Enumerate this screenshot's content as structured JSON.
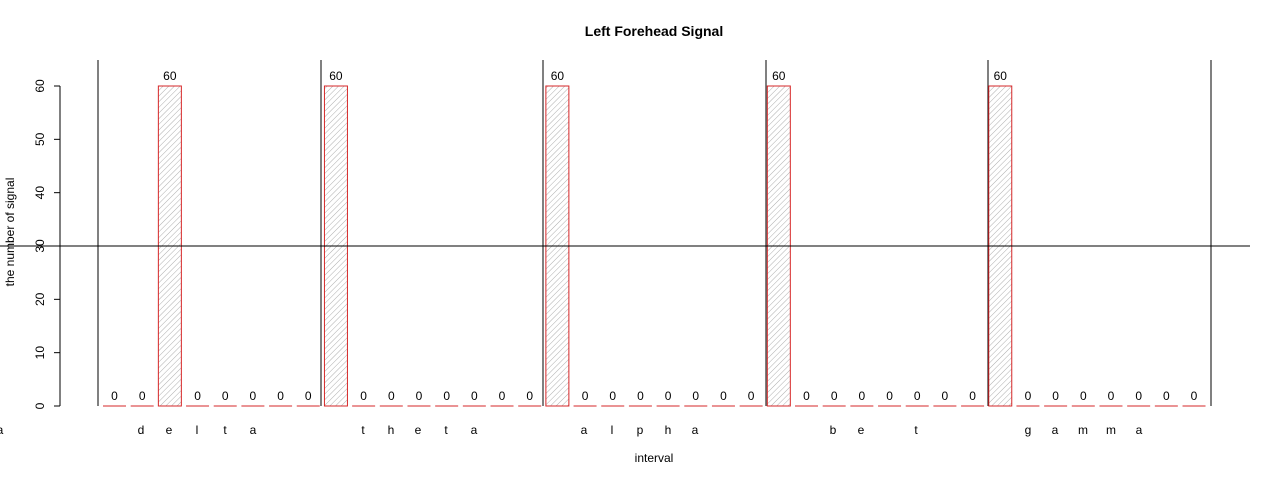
{
  "chart_data": {
    "type": "bar",
    "title": "Left Forehead Signal",
    "xlabel": "interval",
    "ylabel": "the number of signal",
    "ylim": [
      0,
      60
    ],
    "yticks": [
      "0",
      "10",
      "20",
      "30",
      "40",
      "50",
      "60"
    ],
    "threshold_line": 30,
    "bar_border_color": "#d62728",
    "bar_fill": "diagonal-hatch",
    "groups": [
      {
        "label_letters": [
          "d",
          "e",
          "l",
          "t",
          "a"
        ],
        "values": [
          0,
          0,
          60,
          0,
          0,
          0,
          0,
          0
        ]
      },
      {
        "label_letters": [
          "t",
          "h",
          "e",
          "t",
          "a"
        ],
        "values": [
          60,
          0,
          0,
          0,
          0,
          0,
          0,
          0
        ]
      },
      {
        "label_letters": [
          "a",
          "l",
          "p",
          "h",
          "a"
        ],
        "values": [
          60,
          0,
          0,
          0,
          0,
          0,
          0,
          0
        ]
      },
      {
        "label_letters": [
          "b",
          "e",
          "t",
          "a"
        ],
        "values": [
          60,
          0,
          0,
          0,
          0,
          0,
          0,
          0
        ]
      },
      {
        "label_letters": [
          "g",
          "a",
          "m",
          "m",
          "a"
        ],
        "values": [
          60,
          0,
          0,
          0,
          0,
          0,
          0,
          0
        ]
      }
    ]
  }
}
